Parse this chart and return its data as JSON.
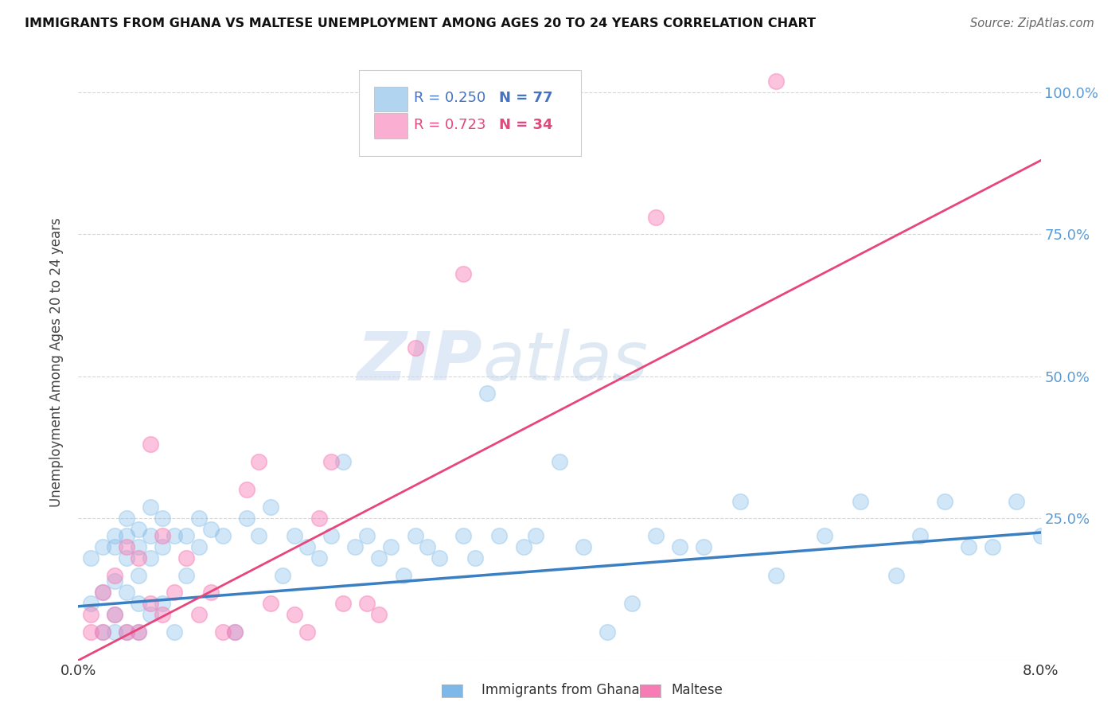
{
  "title": "IMMIGRANTS FROM GHANA VS MALTESE UNEMPLOYMENT AMONG AGES 20 TO 24 YEARS CORRELATION CHART",
  "source": "Source: ZipAtlas.com",
  "ylabel": "Unemployment Among Ages 20 to 24 years",
  "xlim": [
    0.0,
    0.08
  ],
  "ylim": [
    0.0,
    1.05
  ],
  "x_ticks": [
    0.0,
    0.02,
    0.04,
    0.06,
    0.08
  ],
  "x_tick_labels": [
    "0.0%",
    "",
    "",
    "",
    "8.0%"
  ],
  "y_ticks": [
    0.0,
    0.25,
    0.5,
    0.75,
    1.0
  ],
  "y_tick_labels": [
    "",
    "25.0%",
    "50.0%",
    "75.0%",
    "100.0%"
  ],
  "blue_color": "#7db8e8",
  "pink_color": "#f77bb4",
  "legend_blue_r": "R = 0.250",
  "legend_blue_n": "N = 77",
  "legend_pink_r": "R = 0.723",
  "legend_pink_n": "N = 34",
  "legend_label_blue": "Immigrants from Ghana",
  "legend_label_pink": "Maltese",
  "watermark_zip": "ZIP",
  "watermark_atlas": "atlas",
  "blue_scatter_x": [
    0.001,
    0.001,
    0.002,
    0.002,
    0.002,
    0.003,
    0.003,
    0.003,
    0.003,
    0.003,
    0.004,
    0.004,
    0.004,
    0.004,
    0.004,
    0.005,
    0.005,
    0.005,
    0.005,
    0.005,
    0.006,
    0.006,
    0.006,
    0.006,
    0.007,
    0.007,
    0.007,
    0.008,
    0.008,
    0.009,
    0.009,
    0.01,
    0.01,
    0.011,
    0.012,
    0.013,
    0.014,
    0.015,
    0.016,
    0.017,
    0.018,
    0.019,
    0.02,
    0.021,
    0.022,
    0.023,
    0.024,
    0.025,
    0.026,
    0.027,
    0.028,
    0.029,
    0.03,
    0.032,
    0.033,
    0.034,
    0.035,
    0.037,
    0.038,
    0.04,
    0.042,
    0.044,
    0.046,
    0.048,
    0.05,
    0.052,
    0.055,
    0.058,
    0.062,
    0.065,
    0.068,
    0.07,
    0.072,
    0.074,
    0.076,
    0.078,
    0.08
  ],
  "blue_scatter_y": [
    0.1,
    0.18,
    0.05,
    0.12,
    0.2,
    0.08,
    0.14,
    0.05,
    0.2,
    0.22,
    0.05,
    0.12,
    0.18,
    0.22,
    0.25,
    0.05,
    0.1,
    0.15,
    0.2,
    0.23,
    0.08,
    0.18,
    0.22,
    0.27,
    0.1,
    0.2,
    0.25,
    0.05,
    0.22,
    0.15,
    0.22,
    0.2,
    0.25,
    0.23,
    0.22,
    0.05,
    0.25,
    0.22,
    0.27,
    0.15,
    0.22,
    0.2,
    0.18,
    0.22,
    0.35,
    0.2,
    0.22,
    0.18,
    0.2,
    0.15,
    0.22,
    0.2,
    0.18,
    0.22,
    0.18,
    0.47,
    0.22,
    0.2,
    0.22,
    0.35,
    0.2,
    0.05,
    0.1,
    0.22,
    0.2,
    0.2,
    0.28,
    0.15,
    0.22,
    0.28,
    0.15,
    0.22,
    0.28,
    0.2,
    0.2,
    0.28,
    0.22
  ],
  "pink_scatter_x": [
    0.001,
    0.001,
    0.002,
    0.002,
    0.003,
    0.003,
    0.004,
    0.004,
    0.005,
    0.005,
    0.006,
    0.006,
    0.007,
    0.007,
    0.008,
    0.009,
    0.01,
    0.011,
    0.012,
    0.013,
    0.014,
    0.015,
    0.016,
    0.018,
    0.019,
    0.02,
    0.021,
    0.022,
    0.024,
    0.025,
    0.028,
    0.032,
    0.048,
    0.058
  ],
  "pink_scatter_y": [
    0.05,
    0.08,
    0.05,
    0.12,
    0.08,
    0.15,
    0.05,
    0.2,
    0.05,
    0.18,
    0.38,
    0.1,
    0.22,
    0.08,
    0.12,
    0.18,
    0.08,
    0.12,
    0.05,
    0.05,
    0.3,
    0.35,
    0.1,
    0.08,
    0.05,
    0.25,
    0.35,
    0.1,
    0.1,
    0.08,
    0.55,
    0.68,
    0.78,
    1.02
  ],
  "blue_line_x": [
    0.0,
    0.08
  ],
  "blue_line_y": [
    0.095,
    0.225
  ],
  "pink_line_x": [
    0.0,
    0.08
  ],
  "pink_line_y": [
    0.0,
    0.88
  ]
}
